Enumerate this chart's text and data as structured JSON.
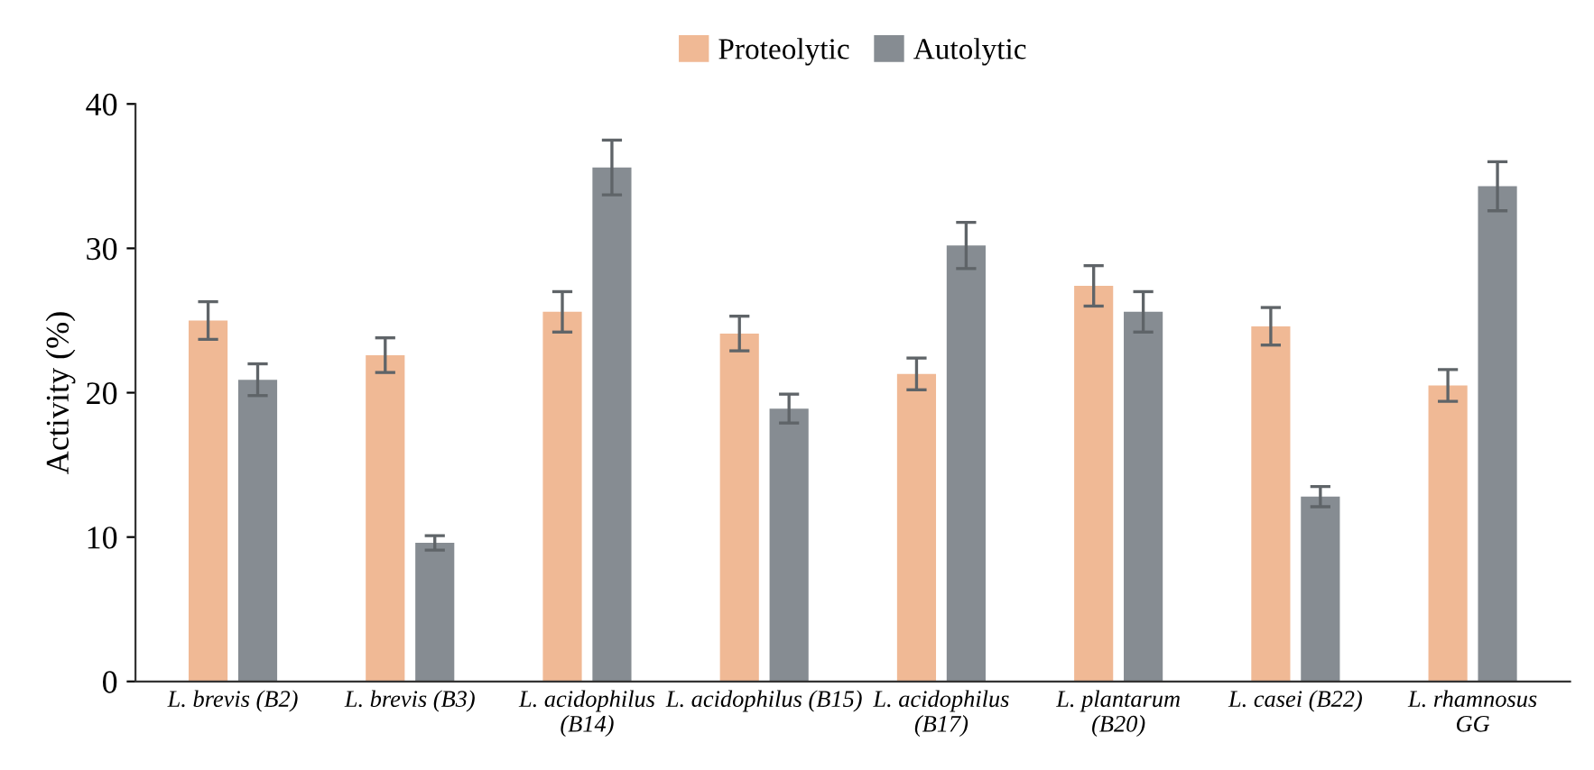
{
  "chart_data": {
    "type": "bar",
    "ylabel": "Activity (%)",
    "categories": [
      "L. brevis (B2)",
      "L. brevis (B3)",
      "L. acidophilus\n(B14)",
      "L. acidophilus (B15)",
      "L. acidophilus\n(B17)",
      "L. plantarum\n(B20)",
      "L. casei (B22)",
      "L. rhamnosus\nGG"
    ],
    "series": [
      {
        "name": "Proteolytic",
        "color": "#f0b995",
        "values": [
          25.0,
          22.6,
          25.6,
          24.1,
          21.3,
          27.4,
          24.6,
          20.5
        ],
        "errors": [
          1.3,
          1.2,
          1.4,
          1.2,
          1.1,
          1.4,
          1.3,
          1.1
        ]
      },
      {
        "name": "Autolytic",
        "color": "#868c92",
        "values": [
          20.9,
          9.6,
          35.6,
          18.9,
          30.2,
          25.6,
          12.8,
          34.3
        ],
        "errors": [
          1.1,
          0.5,
          1.9,
          1.0,
          1.6,
          1.4,
          0.7,
          1.7
        ]
      }
    ],
    "ylim": [
      0,
      40
    ],
    "yticks": [
      0,
      10,
      20,
      30,
      40
    ],
    "grid": false,
    "legend": "top"
  }
}
